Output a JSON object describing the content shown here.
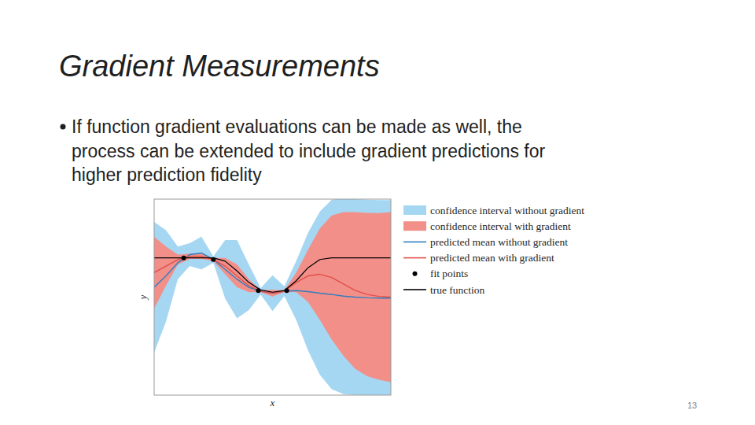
{
  "slide": {
    "title": "Gradient Measurements",
    "bullet": [
      "If function gradient evaluations can be made as well, the",
      "process can be extended to include gradient predictions for",
      "higher prediction fidelity"
    ],
    "page_number": "13"
  },
  "chart_data": {
    "type": "line",
    "x_label": "x",
    "y_label": "y",
    "xlim": [
      0,
      10
    ],
    "ylim": [
      -3,
      3
    ],
    "tick_labels": false,
    "grid": false,
    "legend": "right",
    "x": [
      0,
      0.5,
      1,
      1.5,
      2,
      2.5,
      3,
      3.5,
      4,
      4.5,
      5,
      5.5,
      6,
      6.5,
      7,
      7.5,
      8,
      8.5,
      9,
      9.5,
      10
    ],
    "series": [
      {
        "name": "confidence interval without gradient",
        "type": "area",
        "color": "#a6d7f2",
        "upper": [
          2.3,
          2.05,
          1.55,
          1.65,
          1.85,
          1.25,
          1.75,
          1.75,
          1.0,
          0.28,
          0.67,
          0.33,
          1.1,
          1.97,
          2.62,
          2.98,
          3.03,
          3.0,
          2.98,
          2.97,
          2.97
        ],
        "lower": [
          -1.7,
          -0.75,
          0.55,
          0.95,
          0.85,
          1.05,
          -0.05,
          -0.65,
          -0.4,
          0.08,
          -0.43,
          0.03,
          -0.7,
          -1.63,
          -2.38,
          -2.82,
          -2.97,
          -3.0,
          -3.02,
          -3.03,
          -3.03
        ]
      },
      {
        "name": "confidence interval with gradient",
        "type": "area",
        "color": "#f28f89",
        "upper": [
          1.85,
          1.55,
          1.3,
          1.33,
          1.33,
          1.2,
          1.2,
          1.0,
          0.55,
          0.21,
          0.22,
          0.21,
          0.75,
          1.45,
          2.1,
          2.5,
          2.6,
          2.6,
          2.58,
          2.57,
          2.6
        ],
        "lower": [
          -0.35,
          0.35,
          1.0,
          1.17,
          1.17,
          1.1,
          0.7,
          0.3,
          0.15,
          0.15,
          0.02,
          0.15,
          0.15,
          -0.15,
          -0.7,
          -1.3,
          -1.8,
          -2.2,
          -2.42,
          -2.53,
          -2.6
        ]
      },
      {
        "name": "predicted mean without gradient",
        "type": "line",
        "color": "#2f7fbf",
        "values": [
          0.3,
          0.65,
          1.05,
          1.3,
          1.35,
          1.15,
          0.85,
          0.55,
          0.3,
          0.18,
          0.12,
          0.18,
          0.2,
          0.17,
          0.12,
          0.08,
          0.03,
          0.0,
          -0.02,
          -0.03,
          -0.03
        ]
      },
      {
        "name": "predicted mean with gradient",
        "type": "line",
        "color": "#e0504a",
        "values": [
          0.75,
          0.95,
          1.15,
          1.25,
          1.25,
          1.15,
          0.95,
          0.65,
          0.35,
          0.18,
          0.12,
          0.18,
          0.45,
          0.65,
          0.7,
          0.6,
          0.4,
          0.2,
          0.08,
          0.02,
          0.0
        ]
      },
      {
        "name": "fit points",
        "type": "scatter",
        "color": "#000000",
        "marker": "circle",
        "x": [
          1.25,
          2.5,
          4.4,
          5.6
        ],
        "values": [
          1.2,
          1.15,
          0.2,
          0.2
        ]
      },
      {
        "name": "true function",
        "type": "line",
        "color": "#000000",
        "values": [
          1.2,
          1.2,
          1.2,
          1.2,
          1.2,
          1.2,
          1.1,
          0.8,
          0.45,
          0.22,
          0.15,
          0.2,
          0.5,
          0.9,
          1.15,
          1.2,
          1.2,
          1.2,
          1.2,
          1.2,
          1.2
        ]
      }
    ]
  }
}
